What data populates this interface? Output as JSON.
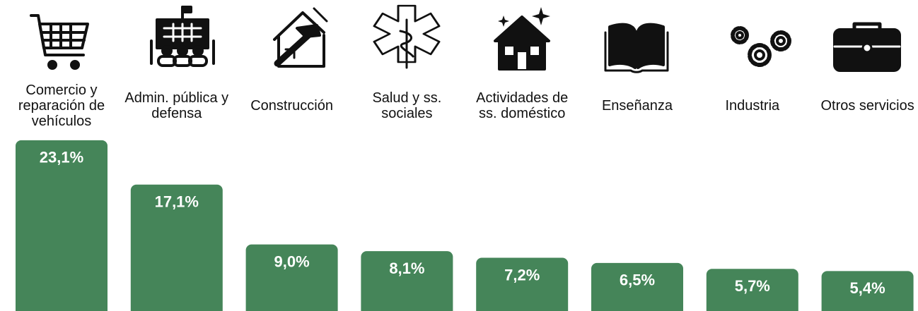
{
  "chart_data": {
    "type": "bar",
    "categories": [
      "Comercio y reparación de vehículos",
      "Admin. pública y defensa",
      "Construcción",
      "Salud y ss. sociales",
      "Actividades de ss. doméstico",
      "Enseñanza",
      "Industria",
      "Otros servicios"
    ],
    "values": [
      23.1,
      17.1,
      9.0,
      8.1,
      7.2,
      6.5,
      5.7,
      5.4
    ],
    "value_labels": [
      "23,1%",
      "17,1%",
      "9,0%",
      "8,1%",
      "7,2%",
      "6,5%",
      "5,7%",
      "5,4%"
    ],
    "color": "#458559"
  }
}
